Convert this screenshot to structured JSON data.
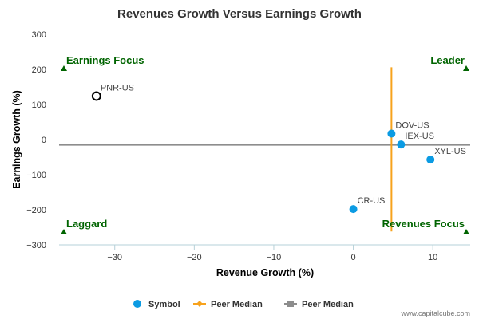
{
  "chart_data": {
    "type": "scatter",
    "title": "Revenues Growth Versus Earnings Growth",
    "xlabel": "Revenue Growth (%)",
    "ylabel": "Earnings Growth (%)",
    "xlim": [
      -37,
      14.7
    ],
    "ylim": [
      -300,
      300
    ],
    "x_ticks": [
      -30,
      -20,
      -10,
      0,
      10
    ],
    "y_ticks": [
      300,
      200,
      100,
      0,
      -100,
      -200,
      -300
    ],
    "x_tick_labels": [
      "−30",
      "−20",
      "−10",
      "0",
      "10"
    ],
    "y_tick_labels": [
      "300",
      "200",
      "100",
      "0",
      "−100",
      "−200",
      "−300"
    ],
    "points": [
      {
        "label": "PNR-US",
        "x": -32.3,
        "y": 124,
        "style": "hollow"
      },
      {
        "label": "DOV-US",
        "x": 4.8,
        "y": 17,
        "style": "filled"
      },
      {
        "label": "IEX-US",
        "x": 6.0,
        "y": -14,
        "style": "filled"
      },
      {
        "label": "XYL-US",
        "x": 9.7,
        "y": -57,
        "style": "filled"
      },
      {
        "label": "CR-US",
        "x": 0.0,
        "y": -198,
        "style": "filled"
      }
    ],
    "peer_median_x": 4.8,
    "peer_median_y": -15,
    "quadrants": {
      "top_left": "Earnings Focus",
      "top_right": "Leader",
      "bottom_left": "Laggard",
      "bottom_right": "Revenues Focus"
    },
    "legend": [
      {
        "label": "Symbol",
        "color": "#0b9be3",
        "marker": "circle"
      },
      {
        "label": "Peer Median",
        "color": "#f7a21c",
        "marker": "diamond"
      },
      {
        "label": "Peer Median",
        "color": "#8d8d8d",
        "marker": "square"
      }
    ],
    "legend_position": "bottom",
    "grid": false
  },
  "colors": {
    "point": "#0b9be3",
    "vertical_median": "#f7a21c",
    "horizontal_median": "#8d8d8d",
    "quadrant_text": "#006400",
    "axis": "#b6d0d8"
  },
  "credit": "www.capitalcube.com"
}
